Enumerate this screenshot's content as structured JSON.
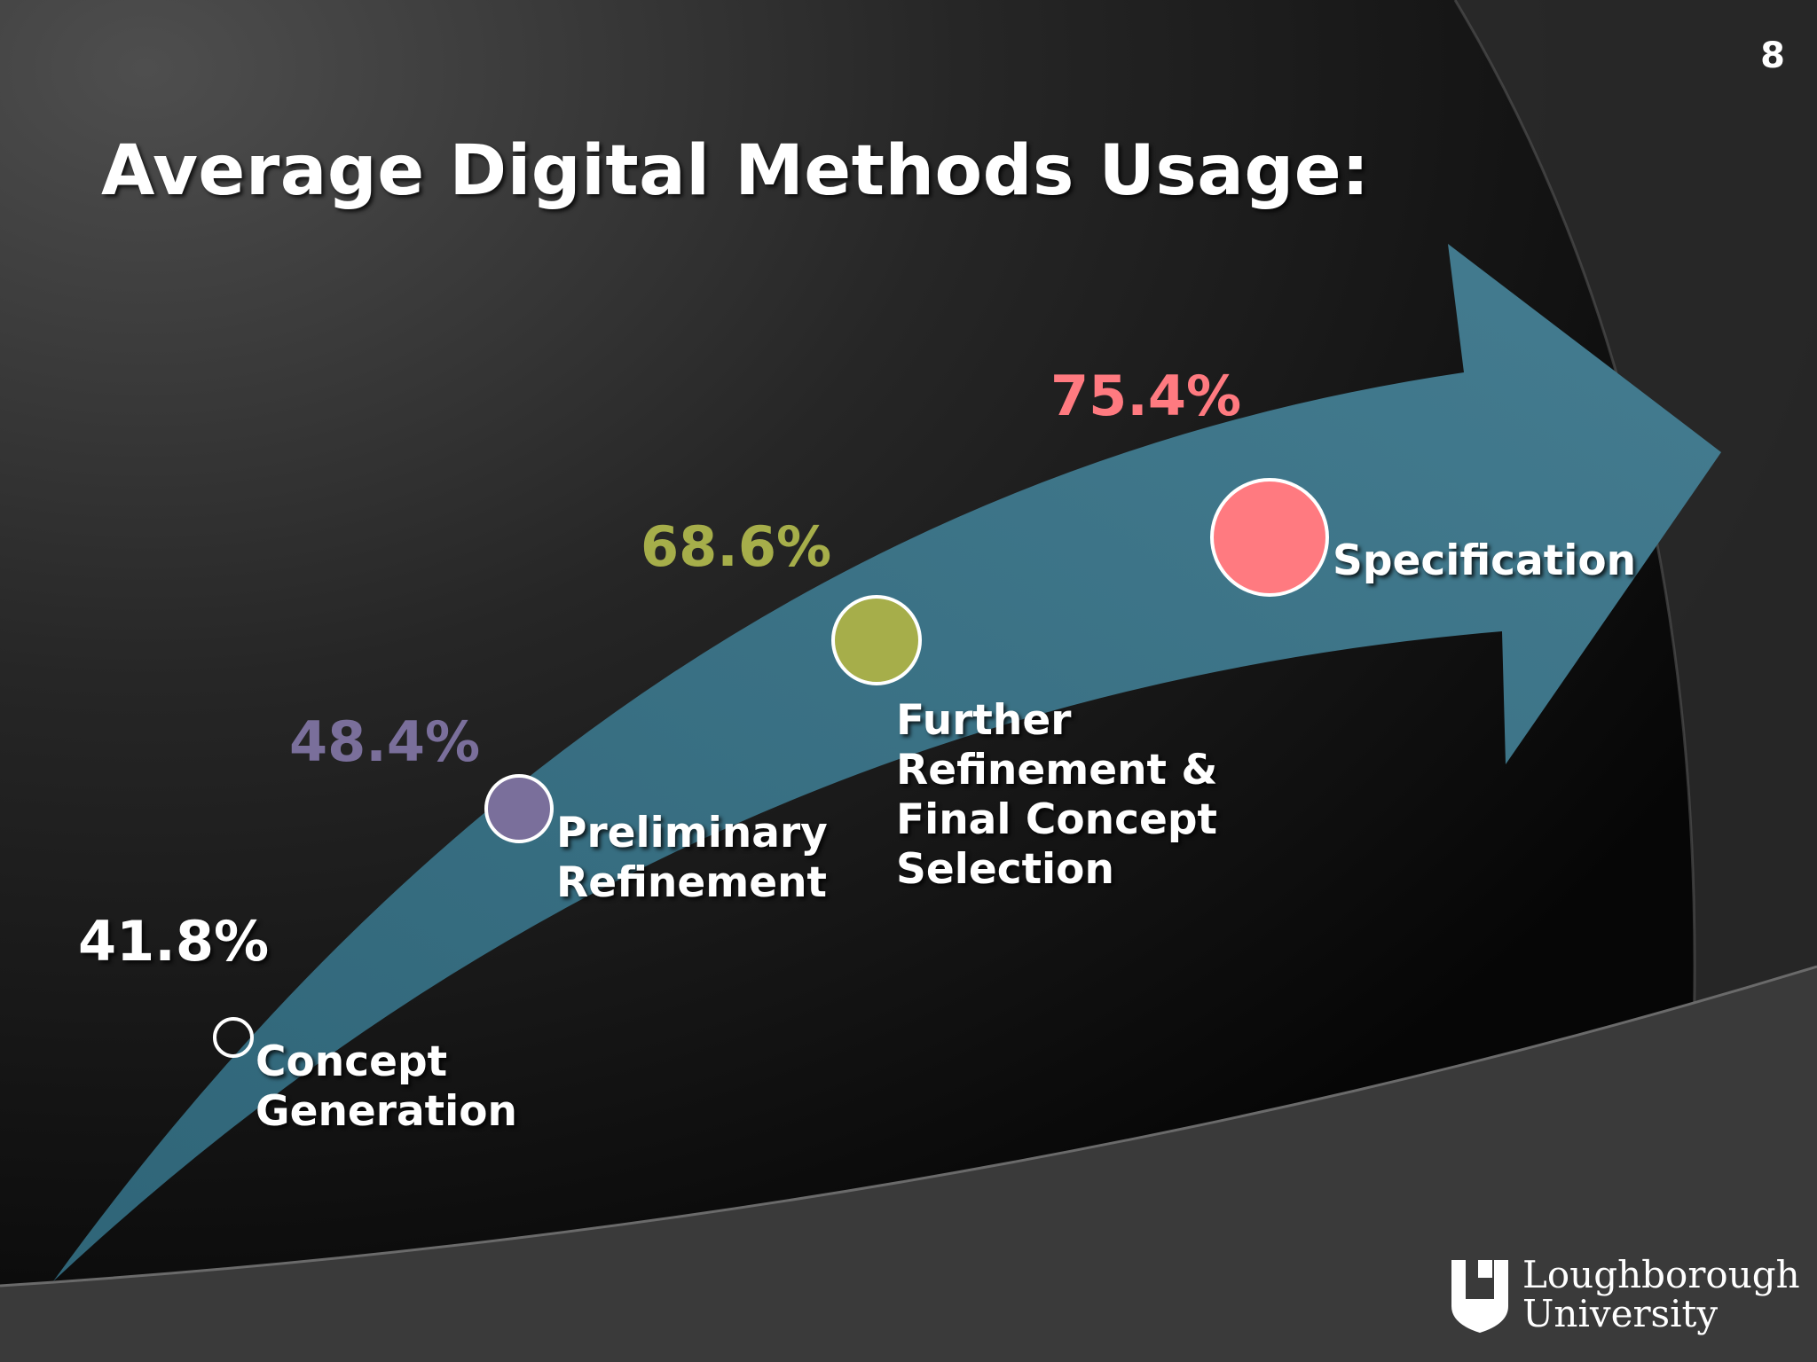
{
  "slide": {
    "number": "8",
    "title": "Average Digital Methods Usage:"
  },
  "stages": [
    {
      "name": "Concept Generation",
      "line1": "Concept",
      "line2": "Generation",
      "percent_label": "41.8%",
      "value": 41.8,
      "color": "#ffffff"
    },
    {
      "name": "Preliminary Refinement",
      "line1": "Preliminary",
      "line2": "Refinement",
      "percent_label": "48.4%",
      "value": 48.4,
      "color": "#7a6f9b"
    },
    {
      "name": "Further Refinement & Final Concept Selection",
      "line1": "Further",
      "line2": "Refinement &",
      "line3": "Final Concept",
      "line4": "Selection",
      "percent_label": "68.6%",
      "value": 68.6,
      "color": "#a6ae4a"
    },
    {
      "name": "Specification",
      "line1": "Specification",
      "percent_label": "75.4%",
      "value": 75.4,
      "color": "#ff7a80"
    }
  ],
  "colors": {
    "arrow": "#3d7385",
    "background": "#1a1a1a"
  },
  "logo": {
    "line1": "Loughborough",
    "line2": "University"
  }
}
